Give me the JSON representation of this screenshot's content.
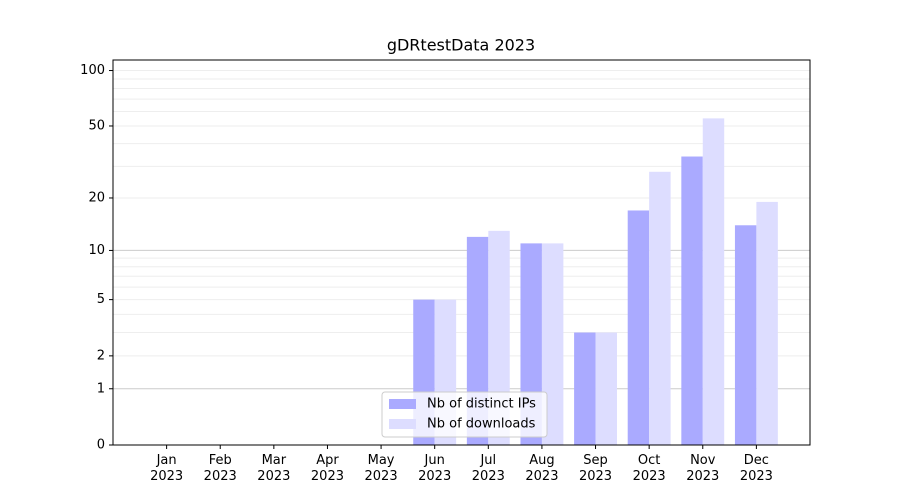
{
  "chart_data": {
    "type": "bar",
    "title": "gDRtestData 2023",
    "categories": [
      "Jan\n2023",
      "Feb\n2023",
      "Mar\n2023",
      "Apr\n2023",
      "May\n2023",
      "Jun\n2023",
      "Jul\n2023",
      "Aug\n2023",
      "Sep\n2023",
      "Oct\n2023",
      "Nov\n2023",
      "Dec\n2023"
    ],
    "series": [
      {
        "name": "Nb of distinct IPs",
        "color": "#aaaaff",
        "values": [
          0,
          0,
          0,
          0,
          0,
          5,
          12,
          11,
          3,
          17,
          34,
          14
        ]
      },
      {
        "name": "Nb of downloads",
        "color": "#ddddff",
        "values": [
          0,
          0,
          0,
          0,
          0,
          5,
          13,
          11,
          3,
          28,
          55,
          19
        ]
      }
    ],
    "yscale": "log1p",
    "ylim": [
      0,
      114
    ],
    "yticks": [
      0,
      1,
      2,
      5,
      10,
      20,
      50,
      100
    ],
    "minor_yticks": [
      3,
      4,
      6,
      7,
      8,
      9,
      30,
      40,
      60,
      70,
      80,
      90
    ],
    "major_grid": [
      1,
      10
    ],
    "grid": true,
    "legend": "lower center"
  }
}
